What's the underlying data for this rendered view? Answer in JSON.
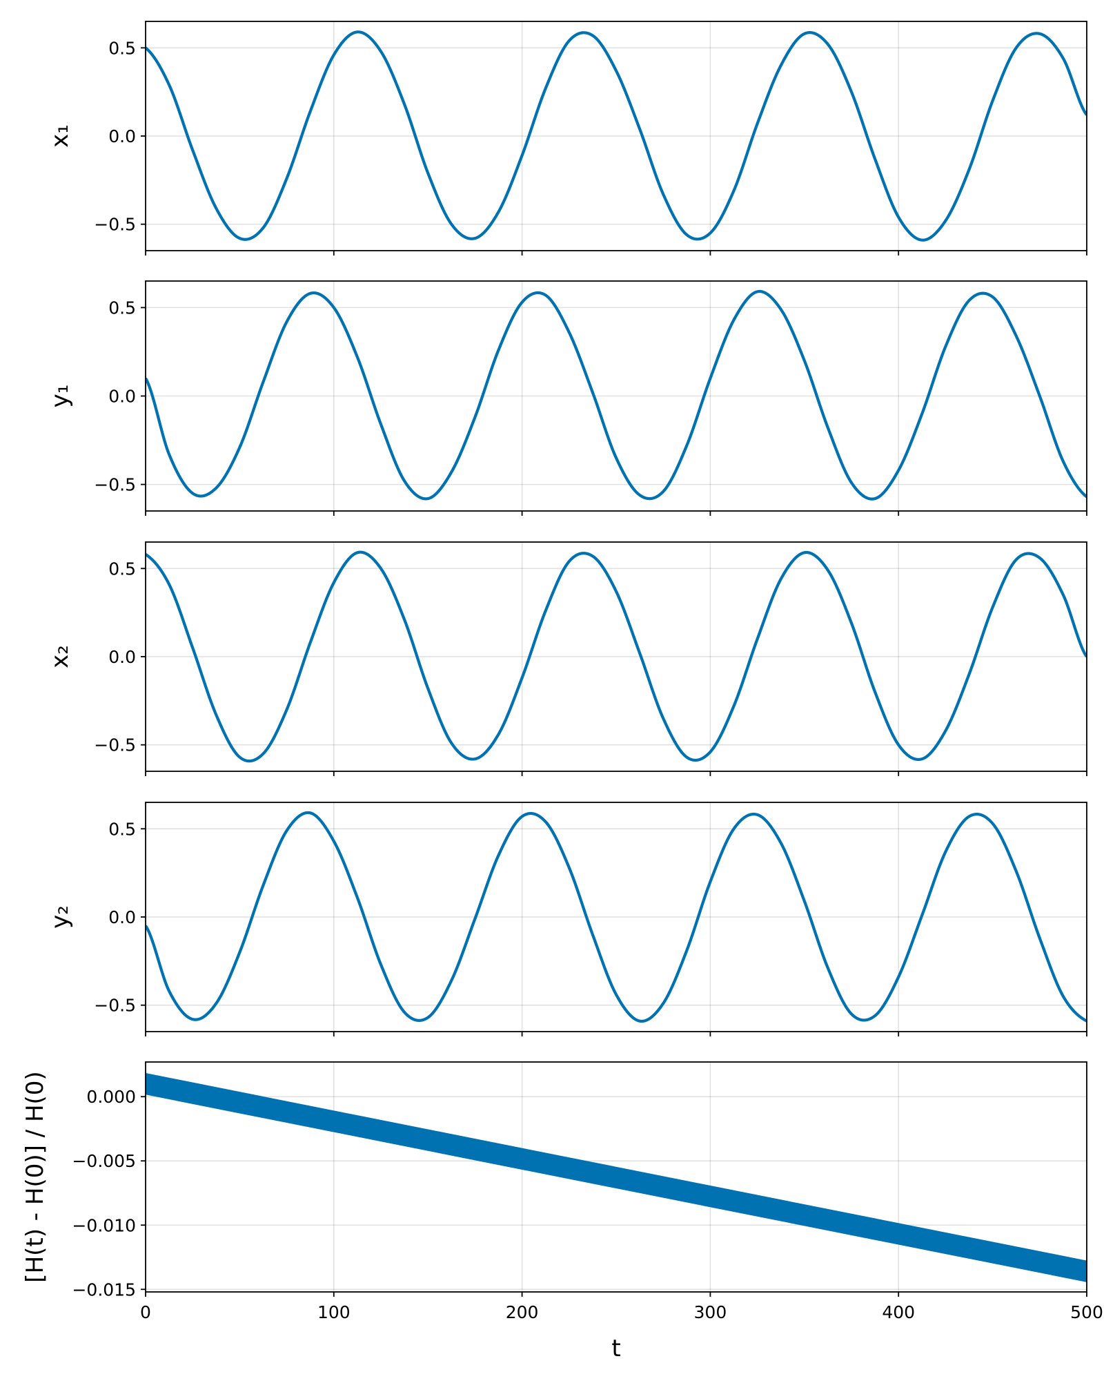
{
  "chart_data": [
    {
      "type": "line",
      "ylabel": "x₁",
      "xlim": [
        0,
        500
      ],
      "ylim": [
        -0.65,
        0.65
      ],
      "yticks": [
        -0.5,
        0.0,
        0.5
      ],
      "ytick_labels": [
        "−0.5",
        "0.0",
        "0.5"
      ],
      "grid": true,
      "color": "#0072b2",
      "series": [
        {
          "x": [
            0,
            1,
            2,
            3,
            4,
            5,
            6,
            7,
            8,
            9,
            10,
            11,
            12,
            13,
            14,
            15,
            16,
            17,
            18,
            19,
            20,
            21,
            22,
            23,
            24,
            25,
            26,
            27,
            28,
            29,
            30,
            31,
            32,
            33,
            34,
            35,
            36,
            37,
            38,
            39,
            40
          ],
          "y": [
            0.5,
            0.29,
            -0.08,
            -0.41,
            -0.58,
            -0.52,
            -0.24,
            0.14,
            0.46,
            0.59,
            0.48,
            0.18,
            -0.21,
            -0.5,
            -0.58,
            -0.43,
            -0.11,
            0.27,
            0.54,
            0.57,
            0.37,
            0.04,
            -0.33,
            -0.56,
            -0.55,
            -0.31,
            0.07,
            0.4,
            0.58,
            0.52,
            0.25,
            -0.13,
            -0.46,
            -0.59,
            -0.48,
            -0.19,
            0.2,
            0.5,
            0.58,
            0.44,
            0.12
          ]
        }
      ]
    },
    {
      "type": "line",
      "ylabel": "y₁",
      "xlim": [
        0,
        500
      ],
      "ylim": [
        -0.65,
        0.65
      ],
      "yticks": [
        -0.5,
        0.0,
        0.5
      ],
      "ytick_labels": [
        "−0.5",
        "0.0",
        "0.5"
      ],
      "grid": true,
      "color": "#0072b2",
      "series": [
        {
          "x": [
            0,
            1,
            2,
            3,
            4,
            5,
            6,
            7,
            8,
            9,
            10,
            11,
            12,
            13,
            14,
            15,
            16,
            17,
            18,
            19,
            20,
            21,
            22,
            23,
            24,
            25,
            26,
            27,
            28,
            29,
            30,
            31,
            32,
            33,
            34,
            35,
            36,
            37,
            38,
            39,
            40
          ],
          "y": [
            0.1,
            -0.33,
            -0.55,
            -0.52,
            -0.29,
            0.08,
            0.42,
            0.58,
            0.5,
            0.22,
            -0.16,
            -0.48,
            -0.58,
            -0.43,
            -0.12,
            0.26,
            0.53,
            0.57,
            0.36,
            0.02,
            -0.35,
            -0.56,
            -0.54,
            -0.28,
            0.1,
            0.43,
            0.59,
            0.49,
            0.2,
            -0.18,
            -0.49,
            -0.58,
            -0.42,
            -0.1,
            0.28,
            0.54,
            0.56,
            0.34,
            0.0,
            -0.37,
            -0.57
          ]
        }
      ]
    },
    {
      "type": "line",
      "ylabel": "x₂",
      "xlim": [
        0,
        500
      ],
      "ylim": [
        -0.65,
        0.65
      ],
      "yticks": [
        -0.5,
        0.0,
        0.5
      ],
      "ytick_labels": [
        "−0.5",
        "0.0",
        "0.5"
      ],
      "grid": true,
      "color": "#0072b2",
      "series": [
        {
          "x": [
            0,
            1,
            2,
            3,
            4,
            5,
            6,
            7,
            8,
            9,
            10,
            11,
            12,
            13,
            14,
            15,
            16,
            17,
            18,
            19,
            20,
            21,
            22,
            23,
            24,
            25,
            26,
            27,
            28,
            29,
            30,
            31,
            32,
            33,
            34,
            35,
            36,
            37,
            38,
            39,
            40
          ],
          "y": [
            0.58,
            0.41,
            0.05,
            -0.33,
            -0.57,
            -0.55,
            -0.3,
            0.08,
            0.42,
            0.59,
            0.5,
            0.21,
            -0.18,
            -0.49,
            -0.58,
            -0.44,
            -0.12,
            0.26,
            0.54,
            0.57,
            0.37,
            0.02,
            -0.35,
            -0.57,
            -0.54,
            -0.28,
            0.1,
            0.44,
            0.59,
            0.49,
            0.19,
            -0.2,
            -0.5,
            -0.58,
            -0.42,
            -0.1,
            0.28,
            0.55,
            0.56,
            0.35,
            0.0
          ]
        }
      ]
    },
    {
      "type": "line",
      "ylabel": "y₂",
      "xlim": [
        0,
        500
      ],
      "ylim": [
        -0.65,
        0.65
      ],
      "yticks": [
        -0.5,
        0.0,
        0.5
      ],
      "ytick_labels": [
        "−0.5",
        "0.0",
        "0.5"
      ],
      "grid": true,
      "color": "#0072b2",
      "series": [
        {
          "x": [
            0,
            1,
            2,
            3,
            4,
            5,
            6,
            7,
            8,
            9,
            10,
            11,
            12,
            13,
            14,
            15,
            16,
            17,
            18,
            19,
            20,
            21,
            22,
            23,
            24,
            25,
            26,
            27,
            28,
            29,
            30,
            31,
            32,
            33,
            34,
            35,
            36,
            37,
            38,
            39,
            40
          ],
          "y": [
            -0.05,
            -0.42,
            -0.58,
            -0.49,
            -0.2,
            0.18,
            0.49,
            0.59,
            0.43,
            0.11,
            -0.27,
            -0.54,
            -0.57,
            -0.36,
            -0.01,
            0.35,
            0.57,
            0.54,
            0.28,
            -0.1,
            -0.44,
            -0.59,
            -0.49,
            -0.19,
            0.2,
            0.5,
            0.58,
            0.42,
            0.09,
            -0.29,
            -0.55,
            -0.56,
            -0.34,
            0.01,
            0.37,
            0.57,
            0.53,
            0.26,
            -0.12,
            -0.45,
            -0.59
          ]
        }
      ]
    },
    {
      "type": "area",
      "xlabel": "t",
      "ylabel": "[H(t) - H(0)] / H(0)",
      "xlim": [
        0,
        500
      ],
      "ylim": [
        -0.0152,
        0.0027
      ],
      "xticks": [
        0,
        100,
        200,
        300,
        400,
        500
      ],
      "xtick_labels": [
        "0",
        "100",
        "200",
        "300",
        "400",
        "500"
      ],
      "yticks": [
        0.0,
        -0.005,
        -0.01,
        -0.015
      ],
      "ytick_labels": [
        "0.000",
        "−0.005",
        "−0.010",
        "−0.015"
      ],
      "grid": true,
      "color": "#0072b2",
      "band": {
        "x": [
          0,
          500
        ],
        "upper": [
          0.0018,
          -0.0128
        ],
        "lower": [
          0.0002,
          -0.0144
        ]
      }
    }
  ]
}
